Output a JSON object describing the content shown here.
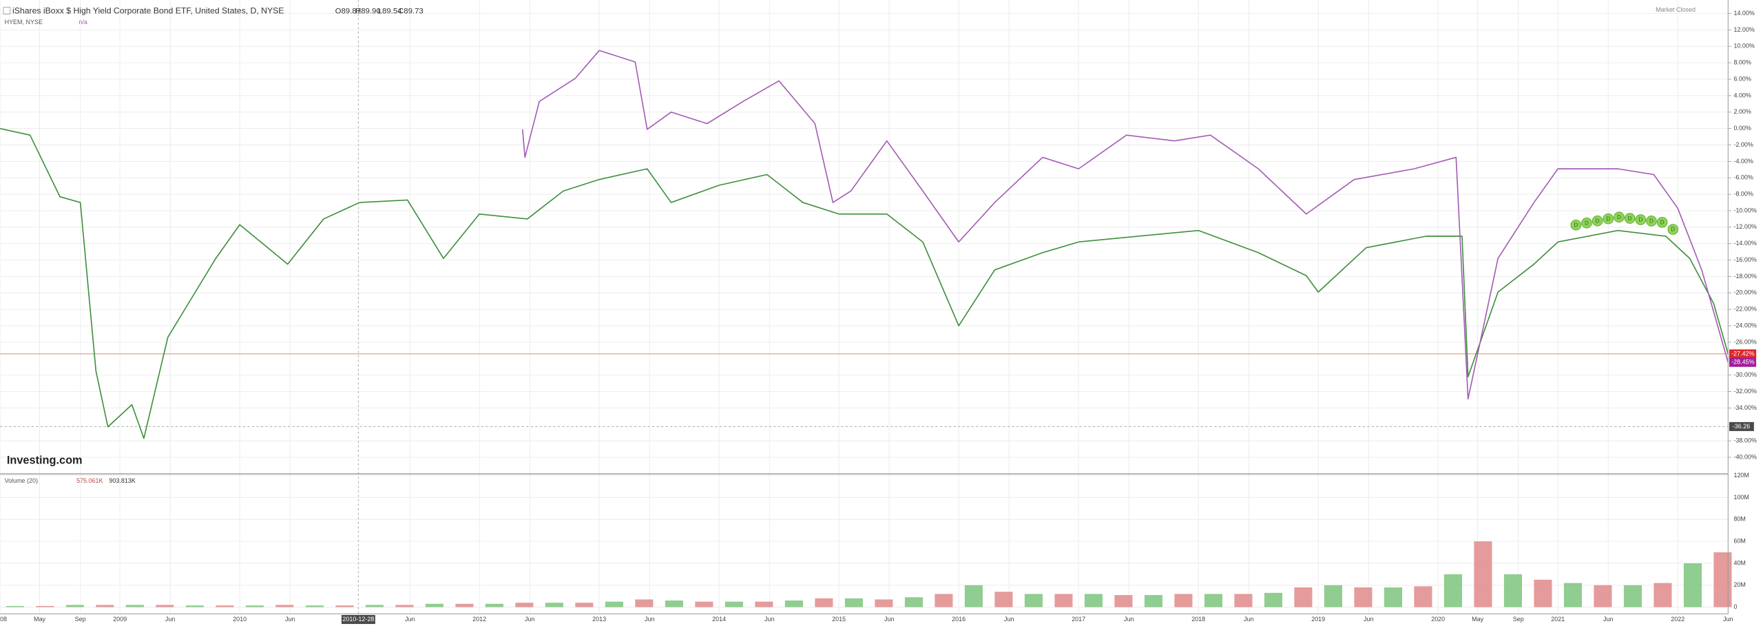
{
  "chart_data": {
    "type": "line",
    "title": "iShares iBoxx $ High Yield Corporate Bond ETF, United States, D, NYSE",
    "ohlc": {
      "open": "O89.87",
      "high": "H89.90",
      "low": "L89.54",
      "close": "C89.73"
    },
    "compare_label": "HYEM, NYSE",
    "compare_value": "n/a",
    "status": "Market Closed",
    "watermark": "Investing.com",
    "crosshair": {
      "x": {
        "value": 2010.99,
        "label": "2010-12-28"
      },
      "y": {
        "value": -36.26,
        "label": "-36.26"
      }
    },
    "xlim": [
      2008.0,
      2022.42
    ],
    "ylim": [
      -41.95,
      15.64
    ],
    "xticks": [
      {
        "value": 2008.0,
        "label": "08"
      },
      {
        "value": 2008.33,
        "label": "May"
      },
      {
        "value": 2008.67,
        "label": "Sep"
      },
      2009,
      {
        "value": 2009.42,
        "label": "Jun"
      },
      2010,
      {
        "value": 2010.42,
        "label": "Jun"
      },
      {
        "value": 2011.42,
        "label": "Jun"
      },
      2012,
      {
        "value": 2012.42,
        "label": "Jun"
      },
      2013,
      {
        "value": 2013.42,
        "label": "Jun"
      },
      2014,
      {
        "value": 2014.42,
        "label": "Jun"
      },
      2015,
      {
        "value": 2015.42,
        "label": "Jun"
      },
      2016,
      {
        "value": 2016.42,
        "label": "Jun"
      },
      2017,
      {
        "value": 2017.42,
        "label": "Jun"
      },
      2018,
      {
        "value": 2018.42,
        "label": "Jun"
      },
      2019,
      {
        "value": 2019.42,
        "label": "Jun"
      },
      2020,
      {
        "value": 2020.33,
        "label": "May"
      },
      {
        "value": 2020.67,
        "label": "Sep"
      },
      2021,
      {
        "value": 2021.42,
        "label": "Jun"
      },
      2022,
      {
        "value": 2022.42,
        "label": "Jun"
      }
    ],
    "yticks": [
      {
        "value": 14,
        "label": "14.00%"
      },
      {
        "value": 12,
        "label": "12.00%"
      },
      {
        "value": 10,
        "label": "10.00%"
      },
      {
        "value": 8,
        "label": "8.00%"
      },
      {
        "value": 6,
        "label": "6.00%"
      },
      {
        "value": 4,
        "label": "4.00%"
      },
      {
        "value": 2,
        "label": "2.00%"
      },
      {
        "value": 0,
        "label": "0.00%"
      },
      {
        "value": -2,
        "label": "-2.00%"
      },
      {
        "value": -4,
        "label": "-4.00%"
      },
      {
        "value": -6,
        "label": "-6.00%"
      },
      {
        "value": -8,
        "label": "-8.00%"
      },
      {
        "value": -10,
        "label": "-10.00%"
      },
      {
        "value": -12,
        "label": "-12.00%"
      },
      {
        "value": -14,
        "label": "-14.00%"
      },
      {
        "value": -16,
        "label": "-16.00%"
      },
      {
        "value": -18,
        "label": "-18.00%"
      },
      {
        "value": -20,
        "label": "-20.00%"
      },
      {
        "value": -22,
        "label": "-22.00%"
      },
      {
        "value": -24,
        "label": "-24.00%"
      },
      {
        "value": -26,
        "label": "-26.00%"
      },
      {
        "value": -30,
        "label": "-30.00%"
      },
      {
        "value": -32,
        "label": "-32.00%"
      },
      {
        "value": -34,
        "label": "-34.00%"
      },
      {
        "value": -38,
        "label": "-38.00%"
      },
      {
        "value": -40,
        "label": "-40.00%"
      }
    ],
    "grid": true,
    "series": [
      {
        "name": "HYG",
        "color": "#3d8f3d",
        "last_color": "#e0262b",
        "last_value_label": "-27.42%",
        "x": [
          2008.0,
          2008.25,
          2008.5,
          2008.67,
          2008.8,
          2008.9,
          2009.1,
          2009.2,
          2009.4,
          2009.6,
          2009.8,
          2010.0,
          2010.4,
          2010.7,
          2011.0,
          2011.4,
          2011.7,
          2012.0,
          2012.4,
          2012.7,
          2013.0,
          2013.4,
          2013.6,
          2014.0,
          2014.4,
          2014.7,
          2015.0,
          2015.4,
          2015.7,
          2016.0,
          2016.3,
          2016.7,
          2017.0,
          2017.5,
          2018.0,
          2018.5,
          2018.9,
          2019.0,
          2019.4,
          2019.9,
          2020.2,
          2020.25,
          2020.5,
          2020.8,
          2021.0,
          2021.5,
          2021.9,
          2022.1,
          2022.3,
          2022.42
        ],
        "values": [
          0,
          -0.8,
          -8.3,
          -9,
          -29.5,
          -36.3,
          -33.6,
          -37.7,
          -25.4,
          -20.6,
          -15.8,
          -11.7,
          -16.5,
          -11,
          -9,
          -8.7,
          -15.8,
          -10.4,
          -11,
          -7.6,
          -6.2,
          -4.9,
          -9,
          -6.9,
          -5.6,
          -9,
          -10.4,
          -10.4,
          -13.8,
          -24,
          -17.2,
          -15.1,
          -13.8,
          -13.1,
          -12.4,
          -15.1,
          -17.9,
          -19.9,
          -14.5,
          -13.1,
          -13.1,
          -30.2,
          -19.9,
          -16.5,
          -13.8,
          -12.4,
          -13.1,
          -15.8,
          -21.3,
          -27.42
        ]
      },
      {
        "name": "HYEM",
        "color": "#a55bb5",
        "last_color": "#a01f9c",
        "last_value_label": "-28.45%",
        "x": [
          2012.36,
          2012.38,
          2012.5,
          2012.8,
          2013.0,
          2013.3,
          2013.4,
          2013.6,
          2013.9,
          2014.2,
          2014.5,
          2014.8,
          2014.95,
          2015.1,
          2015.4,
          2015.7,
          2016.0,
          2016.3,
          2016.7,
          2017.0,
          2017.4,
          2017.8,
          2018.1,
          2018.5,
          2018.9,
          2019.3,
          2019.8,
          2020.15,
          2020.25,
          2020.5,
          2020.8,
          2021.0,
          2021.5,
          2021.8,
          2022.0,
          2022.2,
          2022.42
        ],
        "values": [
          -0.1,
          -3.5,
          3.3,
          6.1,
          9.5,
          8.1,
          -0.1,
          2,
          0.6,
          3.3,
          5.8,
          0.6,
          -9,
          -7.6,
          -1.5,
          -7.6,
          -13.8,
          -9,
          -3.5,
          -4.9,
          -0.8,
          -1.5,
          -0.8,
          -4.9,
          -10.4,
          -6.2,
          -4.9,
          -3.5,
          -32.9,
          -15.8,
          -9,
          -4.9,
          -4.9,
          -5.6,
          -9.7,
          -17.2,
          -28.45
        ]
      }
    ],
    "events": [
      {
        "x": 2021.15,
        "label": "D"
      },
      {
        "x": 2021.24,
        "label": "D"
      },
      {
        "x": 2021.33,
        "label": "D"
      },
      {
        "x": 2021.42,
        "label": "D"
      },
      {
        "x": 2021.51,
        "label": "D"
      },
      {
        "x": 2021.6,
        "label": "D"
      },
      {
        "x": 2021.69,
        "label": "D"
      },
      {
        "x": 2021.78,
        "label": "D"
      },
      {
        "x": 2021.87,
        "label": "D"
      },
      {
        "x": 2021.96,
        "label": "D"
      }
    ],
    "volume": {
      "title": "Volume (20)",
      "legend_values": [
        "575.061K",
        "903.813K"
      ],
      "colors": [
        "#7cc47c",
        "#e08a8a"
      ],
      "ylim": [
        0,
        120
      ],
      "yticks": [
        {
          "value": 0,
          "label": "0"
        },
        {
          "value": 20,
          "label": "20M"
        },
        {
          "value": 40,
          "label": "40M"
        },
        {
          "value": 60,
          "label": "60M"
        },
        {
          "value": 80,
          "label": "80M"
        },
        {
          "value": 100,
          "label": "100M"
        },
        {
          "value": 120,
          "label": "120M"
        }
      ],
      "x": [
        2008.0,
        2008.25,
        2008.5,
        2008.75,
        2009.0,
        2009.25,
        2009.5,
        2009.75,
        2010.0,
        2010.25,
        2010.5,
        2010.75,
        2011.0,
        2011.25,
        2011.5,
        2011.75,
        2012.0,
        2012.25,
        2012.5,
        2012.75,
        2013.0,
        2013.25,
        2013.5,
        2013.75,
        2014.0,
        2014.25,
        2014.5,
        2014.75,
        2015.0,
        2015.25,
        2015.5,
        2015.75,
        2016.0,
        2016.25,
        2016.5,
        2016.75,
        2017.0,
        2017.25,
        2017.5,
        2017.75,
        2018.0,
        2018.25,
        2018.5,
        2018.75,
        2019.0,
        2019.25,
        2019.5,
        2019.75,
        2020.0,
        2020.25,
        2020.5,
        2020.75,
        2021.0,
        2021.25,
        2021.5,
        2021.75,
        2022.0,
        2022.25
      ],
      "values": [
        1,
        1,
        2,
        2,
        2,
        2,
        1.5,
        1.5,
        1.5,
        2,
        1.5,
        1.5,
        2,
        2,
        3,
        3,
        3,
        4,
        4,
        4,
        5,
        7,
        6,
        5,
        5,
        5,
        6,
        8,
        8,
        7,
        9,
        12,
        20,
        14,
        12,
        12,
        12,
        11,
        11,
        12,
        12,
        12,
        13,
        18,
        20,
        18,
        18,
        19,
        30,
        60,
        30,
        25,
        22,
        20,
        20,
        22,
        40,
        50
      ]
    }
  }
}
